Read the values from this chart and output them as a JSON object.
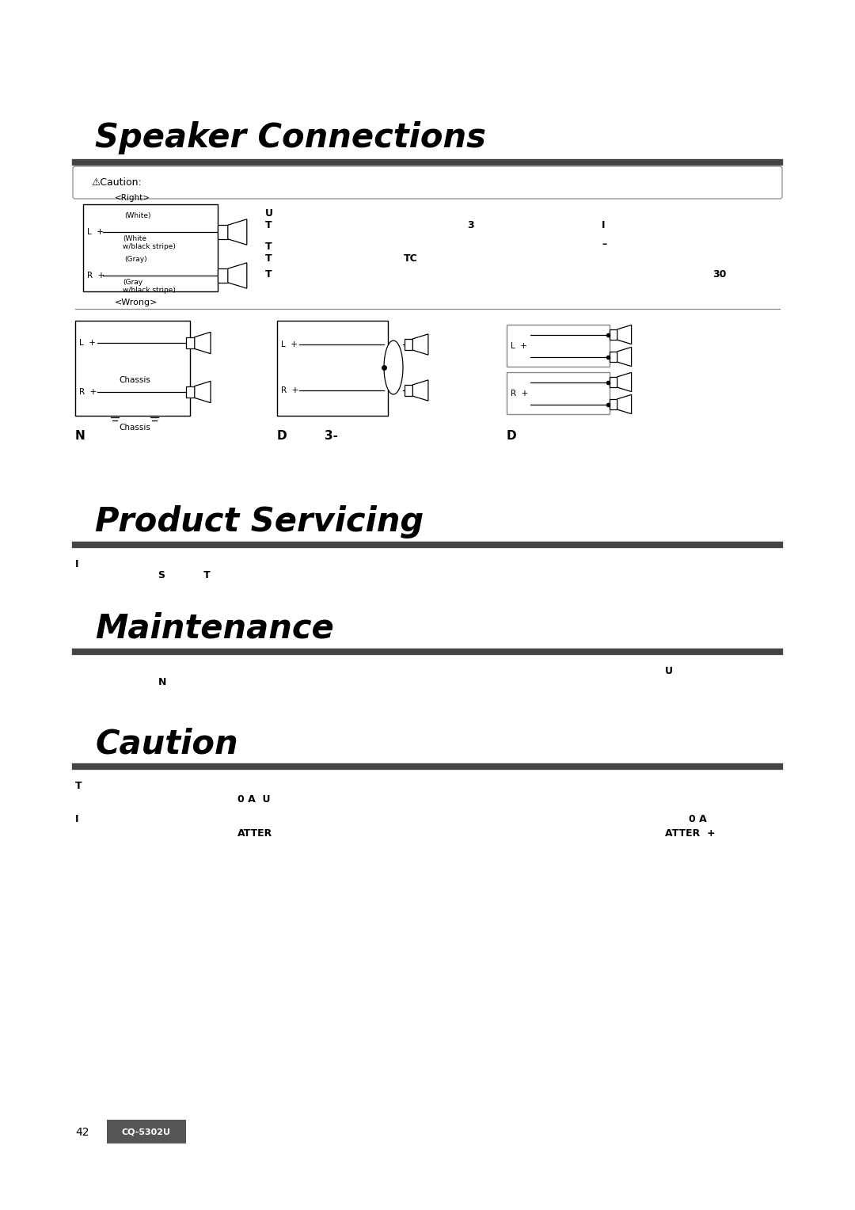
{
  "bg_color": "#ffffff",
  "title_speaker": "Speaker Connections",
  "title_servicing": "Product Servicing",
  "title_maintenance": "Maintenance",
  "title_caution": "Caution",
  "caution_box_text": "⚠Caution:",
  "right_label": "<Right>",
  "wrong_label": "<Wrong>",
  "white_label": "(White)",
  "white_stripe_label": "(White\nw/black stripe)",
  "gray_label": "(Gray)",
  "gray_stripe_label": "(Gray\nw/black stripe)",
  "label_N": "N",
  "label_D1": "D",
  "label_3dash": "3-",
  "label_D2": "D",
  "chassis_label": "Chassis",
  "product_text1": "I",
  "product_text2": "S           T",
  "maintenance_text1": "U",
  "maintenance_text2": "N",
  "caution_text1": "T",
  "caution_text2": "0 A  U",
  "caution_text3": "I",
  "caution_text4_left": "ATTER",
  "caution_text3_right": "0 A",
  "caution_text4_right": "ATTER  +",
  "page_num": "42",
  "model": "CQ-5302U",
  "header_bar_color": "#444444",
  "model_box_color": "#555555",
  "model_text_color": "#ffffff"
}
